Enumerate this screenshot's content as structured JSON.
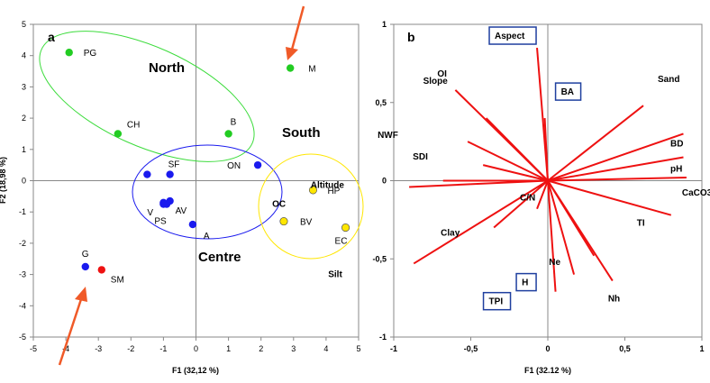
{
  "chart_data": [
    {
      "type": "scatter",
      "panel_label": "a",
      "xlabel": "F1 (32,12 %)",
      "ylabel": "F2 (18,98 %)",
      "xlim": [
        -5,
        5
      ],
      "ylim": [
        -5,
        5
      ],
      "x_ticks": [
        "-5",
        "-4",
        "-3",
        "-2",
        "-1",
        "0",
        "1",
        "2",
        "3",
        "4",
        "5"
      ],
      "y_ticks": [
        "5",
        "4",
        "3",
        "2",
        "1",
        "0",
        "-1",
        "-2",
        "-3",
        "-4",
        "-5"
      ],
      "colors": {
        "North": "#22cc22",
        "Centre": "#1a1aee",
        "South": "#ffe600",
        "Other": "#ee1111"
      },
      "points": [
        {
          "label": "PG",
          "x": -3.9,
          "y": 4.1,
          "group": "North"
        },
        {
          "label": "CH",
          "x": -2.4,
          "y": 1.5,
          "group": "North"
        },
        {
          "label": "B",
          "x": 1.0,
          "y": 1.5,
          "group": "North"
        },
        {
          "label": "M",
          "x": 2.9,
          "y": 3.6,
          "group": "North"
        },
        {
          "label": "SF",
          "x": -0.8,
          "y": 0.2,
          "group": "Centre"
        },
        {
          "label": "",
          "x": -1.5,
          "y": 0.2,
          "group": "Centre"
        },
        {
          "label": "V",
          "x": -1.0,
          "y": -0.7,
          "group": "Centre"
        },
        {
          "label": "AV",
          "x": -0.8,
          "y": -0.65,
          "group": "Centre"
        },
        {
          "label": "",
          "x": -0.9,
          "y": -0.75,
          "group": "Centre"
        },
        {
          "label": "PS",
          "x": -1.0,
          "y": -0.75,
          "group": "Centre"
        },
        {
          "label": "A",
          "x": -0.1,
          "y": -1.4,
          "group": "Centre"
        },
        {
          "label": "ON",
          "x": 1.9,
          "y": 0.5,
          "group": "Centre"
        },
        {
          "label": "HP",
          "x": 3.6,
          "y": -0.3,
          "group": "South"
        },
        {
          "label": "BV",
          "x": 2.7,
          "y": -1.3,
          "group": "South"
        },
        {
          "label": "EC",
          "x": 4.6,
          "y": -1.5,
          "group": "South"
        },
        {
          "label": "G",
          "x": -3.4,
          "y": -2.75,
          "group": "Centre"
        },
        {
          "label": "SM",
          "x": -2.9,
          "y": -2.85,
          "group": "Other"
        }
      ],
      "regions": [
        {
          "name": "North"
        },
        {
          "name": "South"
        },
        {
          "name": "Centre"
        }
      ],
      "arrows": 2
    },
    {
      "type": "biplot",
      "panel_label": "b",
      "xlabel": "F1 (32.12 %)",
      "xlim": [
        -1,
        1
      ],
      "ylim": [
        -1,
        1
      ],
      "x_ticks": [
        "-1",
        "-0,5",
        "0",
        "0,5",
        "1"
      ],
      "y_ticks": [
        "1",
        "0,5",
        "0",
        "-0,5",
        "-1"
      ],
      "line_color": "#ee1111",
      "box_color": "#1f3f9f",
      "vectors": [
        {
          "label": "Aspect",
          "x": -0.07,
          "y": 0.85,
          "boxed": true
        },
        {
          "label": "BA",
          "x": -0.02,
          "y": 0.4,
          "boxed": true
        },
        {
          "label": "OI",
          "x": -0.6,
          "y": 0.58
        },
        {
          "label": "Slope",
          "x": -0.4,
          "y": 0.4
        },
        {
          "label": "NWF",
          "x": -0.52,
          "y": 0.25
        },
        {
          "label": "SDI",
          "x": -0.42,
          "y": 0.1
        },
        {
          "label": "Altitude",
          "x": -0.68,
          "y": 0.0
        },
        {
          "label": "OC",
          "x": -0.9,
          "y": -0.04
        },
        {
          "label": "C/N",
          "x": -0.07,
          "y": -0.18
        },
        {
          "label": "Clay",
          "x": -0.35,
          "y": -0.3
        },
        {
          "label": "Silt",
          "x": -0.87,
          "y": -0.53
        },
        {
          "label": "Sand",
          "x": 0.62,
          "y": 0.48
        },
        {
          "label": "BD",
          "x": 0.88,
          "y": 0.3
        },
        {
          "label": "pH",
          "x": 0.88,
          "y": 0.15
        },
        {
          "label": "CaCO3",
          "x": 0.9,
          "y": 0.02
        },
        {
          "label": "TI",
          "x": 0.8,
          "y": -0.22
        },
        {
          "label": "Ne",
          "x": 0.3,
          "y": -0.48
        },
        {
          "label": "Nh",
          "x": 0.42,
          "y": -0.64
        },
        {
          "label": "H",
          "x": 0.17,
          "y": -0.6,
          "boxed": true
        },
        {
          "label": "TPI",
          "x": 0.05,
          "y": -0.71,
          "boxed": true
        }
      ]
    }
  ]
}
